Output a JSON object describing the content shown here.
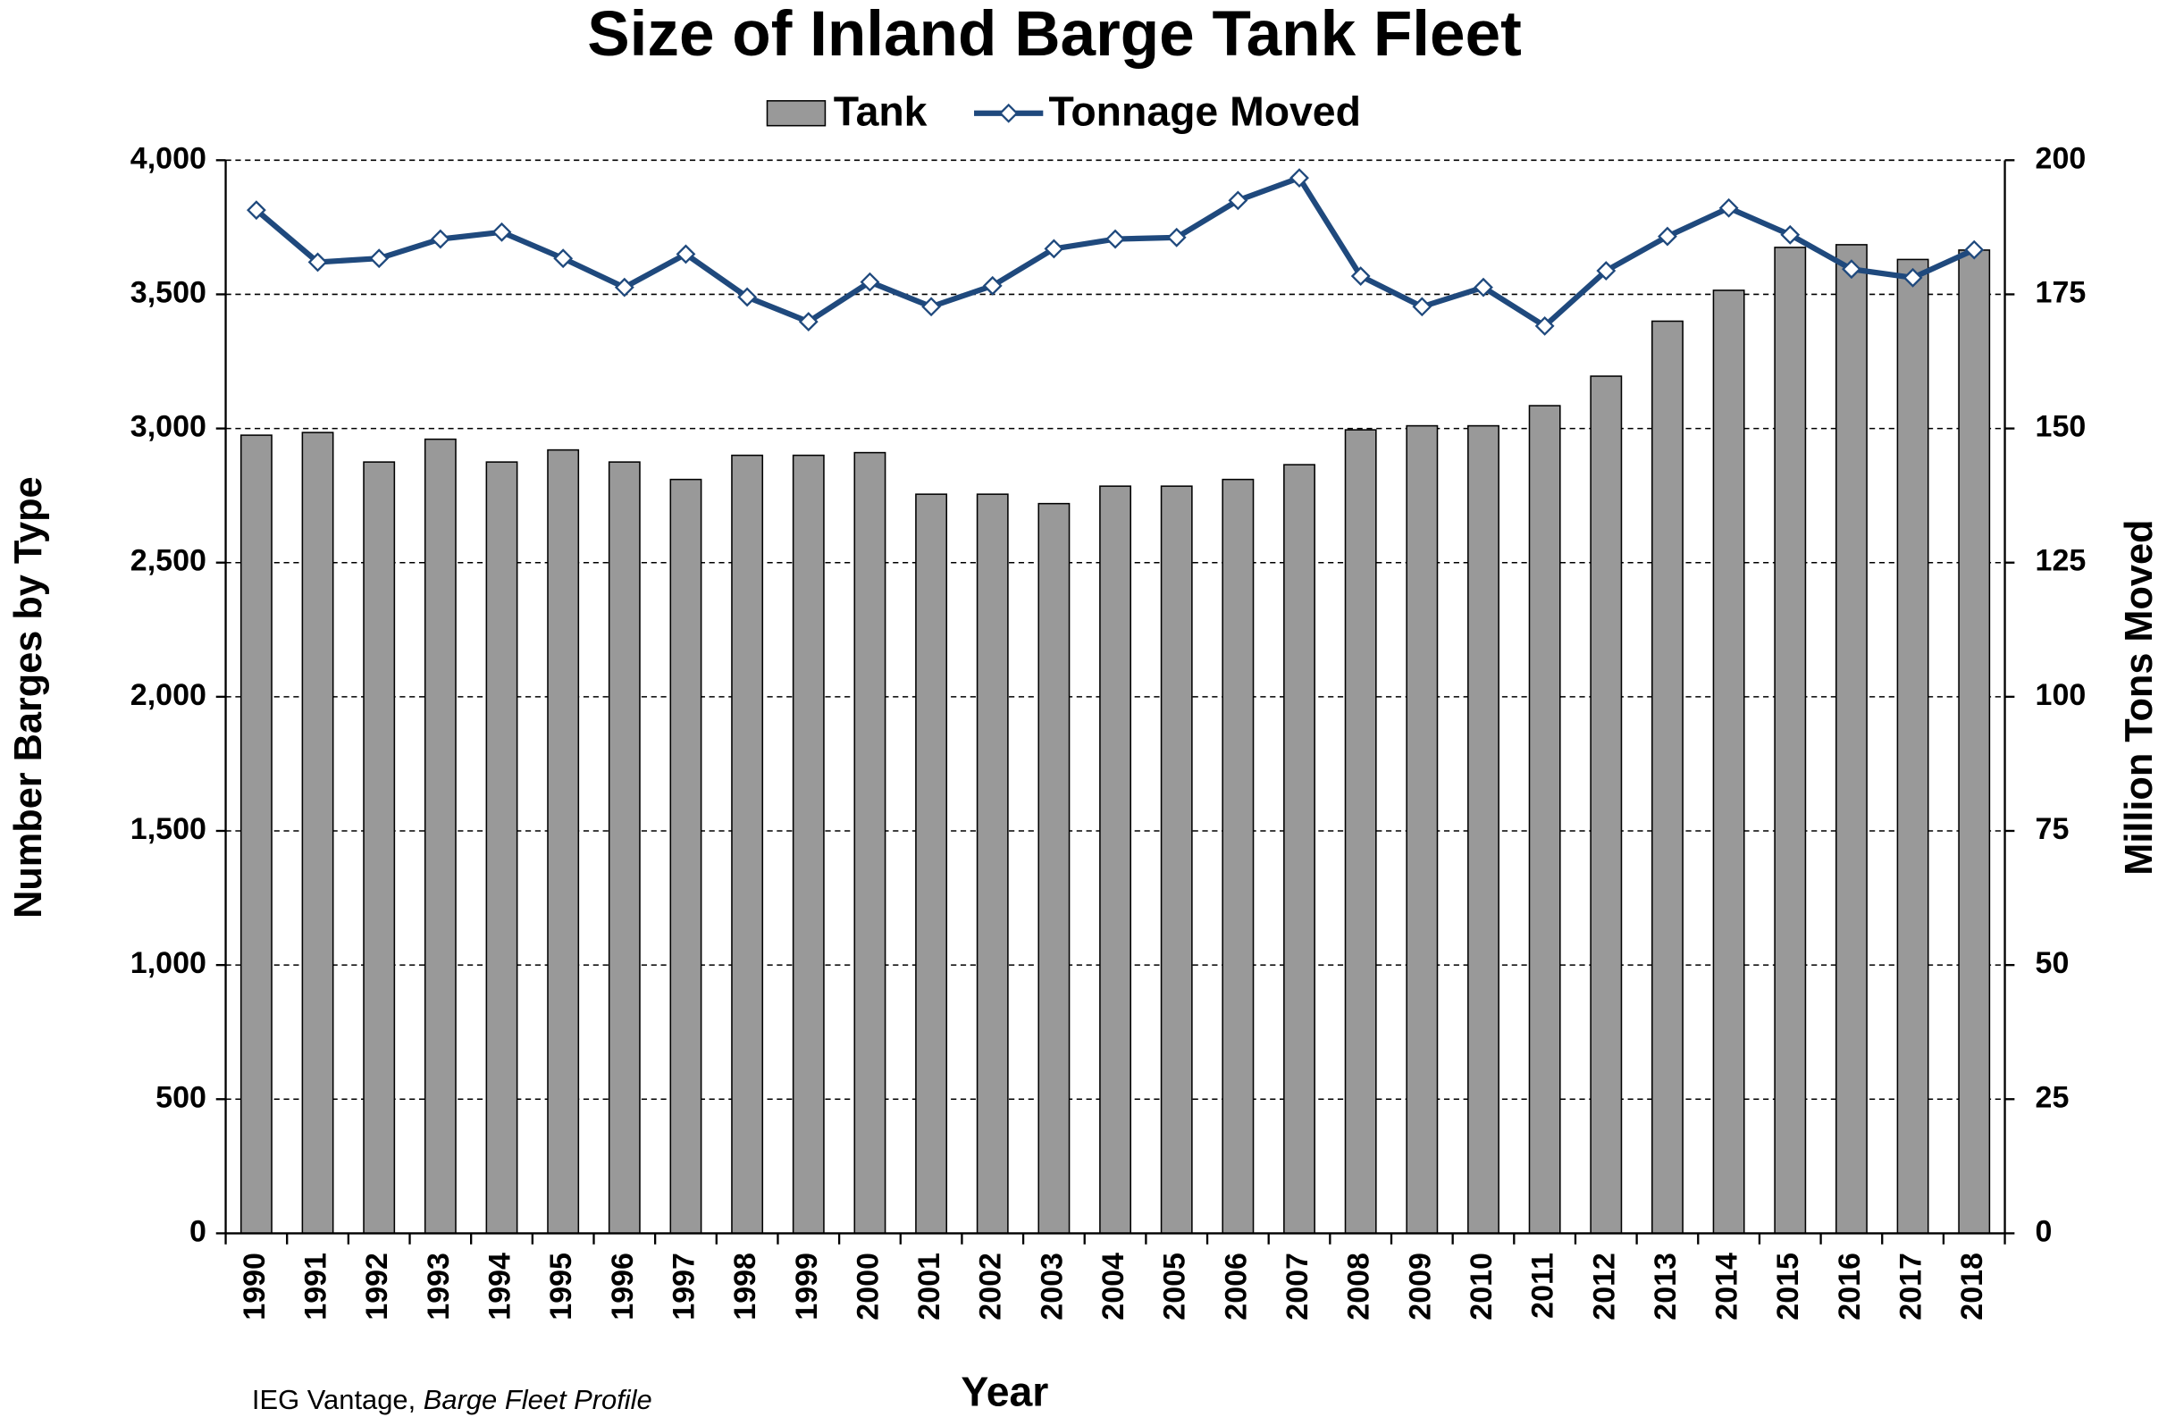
{
  "chart_data": {
    "type": "bar_line",
    "title": "Size of Inland Barge Tank Fleet",
    "x_label": "Year",
    "y_label": "Number Barges by Type",
    "y2_label": "Million Tons Moved",
    "source": "IEG Vantage,",
    "source_title": "Barge Fleet Profile",
    "categories": [
      "1990",
      "1991",
      "1992",
      "1993",
      "1994",
      "1995",
      "1996",
      "1997",
      "1998",
      "1999",
      "2000",
      "2001",
      "2002",
      "2003",
      "2004",
      "2005",
      "2006",
      "2007",
      "2008",
      "2009",
      "2010",
      "2011",
      "2012",
      "2013",
      "2014",
      "2015",
      "2016",
      "2017",
      "2018"
    ],
    "series": [
      {
        "name": "Tank",
        "type": "bar",
        "color": "#999999",
        "axis": "y",
        "values": [
          2975,
          2985,
          2875,
          2960,
          2875,
          2920,
          2875,
          2810,
          2900,
          2900,
          2910,
          2755,
          2755,
          2720,
          2785,
          2785,
          2810,
          2865,
          2995,
          3010,
          3010,
          3085,
          3195,
          3400,
          3515,
          3675,
          3685,
          3630,
          3665
        ]
      },
      {
        "name": "Tonnage Moved",
        "type": "line",
        "color": "#1f497d",
        "axis": "y2",
        "values": [
          190.7,
          181,
          181.7,
          185.3,
          186.6,
          181.7,
          176.3,
          182.5,
          174.5,
          169.9,
          177.3,
          172.7,
          176.6,
          183.5,
          185.3,
          185.6,
          192.5,
          196.7,
          178.4,
          172.7,
          176.3,
          169.1,
          179.4,
          185.8,
          191.1,
          186.1,
          179.7,
          178.1,
          183.3
        ]
      }
    ],
    "ylim": [
      0,
      4000
    ],
    "yticks": [
      0,
      500,
      {
        "value": 1000,
        "label": "1,000"
      },
      {
        "value": 1500,
        "label": "1,500"
      },
      {
        "value": 2000,
        "label": "2,000"
      },
      {
        "value": 2500,
        "label": "2,500"
      },
      {
        "value": 3000,
        "label": "3,000"
      },
      {
        "value": 3500,
        "label": "3,500"
      },
      {
        "value": 4000,
        "label": "4,000"
      }
    ],
    "y2lim": [
      0,
      200
    ],
    "y2ticks": [
      0,
      25,
      50,
      75,
      100,
      125,
      150,
      175,
      200
    ],
    "grid": true
  }
}
